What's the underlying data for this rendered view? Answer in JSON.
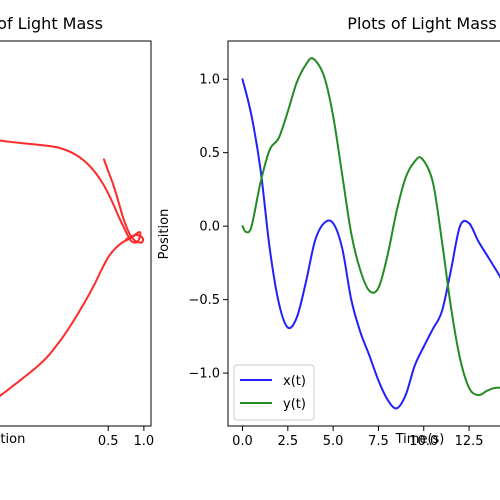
{
  "chart_data": [
    {
      "type": "line",
      "title": "Phase Plot of Light Mass",
      "xlabel": "Position",
      "ylabel": "",
      "xlim": [
        -1.3,
        1.1
      ],
      "ylim": [
        -1.3,
        1.3
      ],
      "x_ticks": [
        {
          "value": 0.5,
          "label": "0.5"
        },
        {
          "value": 1.0,
          "label": "1.0"
        }
      ],
      "y_ticks": [],
      "grid": false,
      "series": [
        {
          "name": "",
          "color": "#ff2a2a",
          "x": [
            -1.3,
            -0.9,
            -0.5,
            -0.2,
            0.05,
            0.25,
            0.42,
            0.55,
            0.65,
            0.72,
            0.78,
            0.82,
            0.86,
            0.9,
            0.93,
            0.95,
            0.94,
            0.9,
            0.85,
            0.78,
            0.7,
            0.6,
            0.5,
            0.4,
            0.3,
            0.15,
            0.0,
            -0.2,
            -0.5,
            -1.3
          ],
          "y": [
            0.65,
            0.62,
            0.6,
            0.58,
            0.53,
            0.45,
            0.34,
            0.22,
            0.11,
            0.04,
            -0.02,
            -0.05,
            -0.06,
            -0.06,
            -0.04,
            -0.01,
            0.01,
            0.0,
            -0.02,
            -0.04,
            -0.06,
            -0.1,
            -0.16,
            -0.25,
            -0.35,
            -0.48,
            -0.6,
            -0.74,
            -0.9,
            -1.2
          ]
        },
        {
          "name": "",
          "color": "#ff2a2a",
          "x": [
            0.44,
            0.5,
            0.57,
            0.64,
            0.7,
            0.76,
            0.82,
            0.88,
            0.93,
            0.97,
            0.99,
            0.96,
            0.9,
            0.82,
            0.75
          ],
          "y": [
            0.5,
            0.42,
            0.33,
            0.22,
            0.12,
            0.04,
            -0.02,
            -0.05,
            -0.06,
            -0.06,
            -0.04,
            -0.02,
            -0.01,
            -0.02,
            -0.04
          ]
        }
      ]
    },
    {
      "type": "line",
      "title": "Plots of Light Mass",
      "xlabel": "Time(s)",
      "ylabel": "Position",
      "xlim": [
        -0.8,
        15.2
      ],
      "ylim": [
        -1.36,
        1.26
      ],
      "x_ticks": [
        {
          "value": 0.0,
          "label": "0.0"
        },
        {
          "value": 2.5,
          "label": "2.5"
        },
        {
          "value": 5.0,
          "label": "5.0"
        },
        {
          "value": 7.5,
          "label": "7.5"
        },
        {
          "value": 10.0,
          "label": "10.0"
        },
        {
          "value": 12.5,
          "label": "12.5"
        }
      ],
      "y_ticks": [
        {
          "value": 1.0,
          "label": "1.0"
        },
        {
          "value": 0.5,
          "label": "0.5"
        },
        {
          "value": 0.0,
          "label": "0.0"
        },
        {
          "value": -0.5,
          "label": "−0.5"
        },
        {
          "value": -1.0,
          "label": "−1.0"
        }
      ],
      "grid": false,
      "legend_position": "lower-left",
      "series": [
        {
          "name": "x(t)",
          "color": "#2020ff",
          "x": [
            0.0,
            0.5,
            1.0,
            1.5,
            2.0,
            2.5,
            3.0,
            3.5,
            4.0,
            4.5,
            5.0,
            5.5,
            6.0,
            6.5,
            7.0,
            7.5,
            8.0,
            8.5,
            9.0,
            9.5,
            10.0,
            10.5,
            11.0,
            11.5,
            12.0,
            12.5,
            13.0,
            13.5,
            14.0,
            14.5,
            15.2
          ],
          "y": [
            1.0,
            0.75,
            0.38,
            -0.15,
            -0.52,
            -0.69,
            -0.62,
            -0.38,
            -0.1,
            0.02,
            0.02,
            -0.15,
            -0.5,
            -0.72,
            -0.88,
            -1.05,
            -1.18,
            -1.24,
            -1.15,
            -0.95,
            -0.82,
            -0.7,
            -0.58,
            -0.3,
            0.0,
            0.02,
            -0.1,
            -0.2,
            -0.3,
            -0.4,
            -0.5
          ]
        },
        {
          "name": "y(t)",
          "color": "#228b22",
          "x": [
            0.0,
            0.2,
            0.5,
            1.0,
            1.5,
            2.0,
            2.5,
            3.0,
            3.5,
            3.9,
            4.5,
            5.0,
            5.5,
            6.0,
            6.5,
            7.0,
            7.5,
            8.0,
            8.5,
            9.0,
            9.5,
            9.9,
            10.5,
            11.0,
            11.5,
            12.0,
            12.5,
            13.0,
            13.5,
            14.0,
            15.2
          ],
          "y": [
            0.0,
            -0.04,
            0.0,
            0.3,
            0.52,
            0.6,
            0.78,
            0.98,
            1.1,
            1.14,
            1.02,
            0.75,
            0.35,
            -0.05,
            -0.3,
            -0.44,
            -0.42,
            -0.2,
            0.1,
            0.33,
            0.44,
            0.46,
            0.3,
            -0.1,
            -0.55,
            -0.9,
            -1.1,
            -1.15,
            -1.12,
            -1.1,
            -1.1
          ]
        }
      ]
    }
  ]
}
